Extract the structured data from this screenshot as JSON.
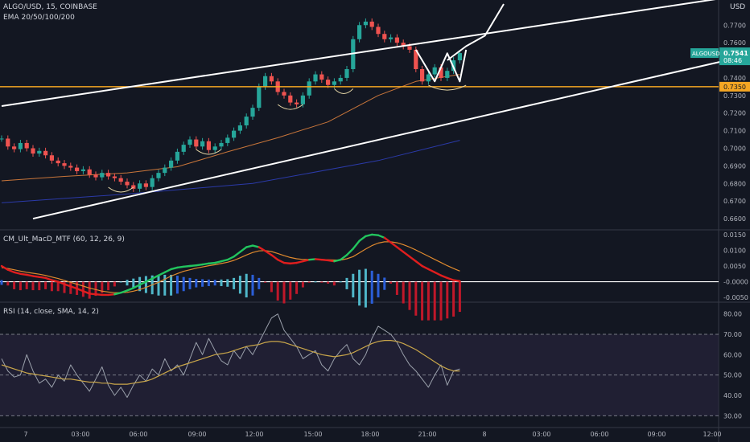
{
  "header": {
    "symbol_line": "ALGO/USD, 15, COINBASE",
    "ema_line": "EMA 20/50/100/200",
    "currency": "USD"
  },
  "colors": {
    "background": "#131722",
    "up": "#26a69a",
    "down": "#ef5350",
    "level": "#f5a623",
    "channel": "#ffffff",
    "ema_orange": "#c8753a",
    "ema_navy": "#2b3aa8",
    "macd_green": "#22c55e",
    "macd_red": "#e01e1e",
    "macd_signal": "#e08a2e",
    "rsi_line": "#9aa0ab",
    "rsi_sma": "#c9a64a",
    "rsi_band": "#2a2540"
  },
  "chart_data": [
    {
      "type": "candlestick",
      "panel": "price",
      "ylim": [
        0.655,
        0.782
      ],
      "y_ticks": [
        "0.7700",
        "0.7600",
        "0.7400",
        "0.7300",
        "0.7200",
        "0.7100",
        "0.7000",
        "0.6900",
        "0.6800",
        "0.6700",
        "0.6600"
      ],
      "x_ticks": [
        "7",
        "03:00",
        "06:00",
        "09:00",
        "12:00",
        "15:00",
        "18:00",
        "21:00",
        "8",
        "03:00",
        "06:00",
        "09:00",
        "12:00"
      ],
      "candle_start": 0.7055,
      "candle_closes": [
        0.7055,
        0.701,
        0.6995,
        0.703,
        0.7,
        0.697,
        0.6985,
        0.696,
        0.693,
        0.6915,
        0.69,
        0.689,
        0.687,
        0.688,
        0.685,
        0.6835,
        0.686,
        0.684,
        0.683,
        0.681,
        0.679,
        0.677,
        0.68,
        0.678,
        0.683,
        0.686,
        0.689,
        0.693,
        0.698,
        0.702,
        0.705,
        0.701,
        0.704,
        0.699,
        0.701,
        0.703,
        0.706,
        0.71,
        0.713,
        0.718,
        0.723,
        0.735,
        0.741,
        0.738,
        0.732,
        0.73,
        0.726,
        0.725,
        0.73,
        0.738,
        0.742,
        0.739,
        0.736,
        0.738,
        0.74,
        0.745,
        0.762,
        0.77,
        0.772,
        0.769,
        0.765,
        0.762,
        0.763,
        0.76,
        0.758,
        0.756,
        0.745,
        0.738,
        0.742,
        0.746,
        0.74,
        0.744,
        0.75,
        0.7541
      ],
      "ema_orange": [
        {
          "i": 0,
          "v": 0.6815
        },
        {
          "i": 10,
          "v": 0.684
        },
        {
          "i": 20,
          "v": 0.686
        },
        {
          "i": 28,
          "v": 0.6895
        },
        {
          "i": 36,
          "v": 0.698
        },
        {
          "i": 44,
          "v": 0.706
        },
        {
          "i": 52,
          "v": 0.715
        },
        {
          "i": 60,
          "v": 0.73
        },
        {
          "i": 66,
          "v": 0.738
        },
        {
          "i": 73,
          "v": 0.742
        }
      ],
      "ema_navy": [
        {
          "i": 0,
          "v": 0.669
        },
        {
          "i": 20,
          "v": 0.674
        },
        {
          "i": 40,
          "v": 0.68
        },
        {
          "i": 60,
          "v": 0.693
        },
        {
          "i": 73,
          "v": 0.7045
        }
      ],
      "horizontal_level": {
        "value": 0.735,
        "label": "0.7350"
      },
      "last_price": {
        "symbol": "ALGOUSD",
        "value": "0.7541",
        "countdown": "08:46"
      },
      "channel_upper": [
        {
          "i": 0,
          "v": 0.724
        },
        {
          "i": 118,
          "v": 0.787
        }
      ],
      "channel_lower": [
        {
          "i": 5,
          "v": 0.66
        },
        {
          "i": 118,
          "v": 0.752
        }
      ],
      "projection": [
        {
          "i": 71,
          "v": 0.75
        },
        {
          "i": 74,
          "v": 0.758
        },
        {
          "i": 77,
          "v": 0.764
        },
        {
          "i": 80,
          "v": 0.782
        }
      ],
      "double_bottom": [
        {
          "i": 66,
          "v": 0.756
        },
        {
          "i": 69,
          "v": 0.738
        },
        {
          "i": 71,
          "v": 0.754
        },
        {
          "i": 73,
          "v": 0.738
        },
        {
          "i": 74,
          "v": 0.756
        }
      ]
    },
    {
      "type": "line",
      "panel": "macd",
      "title": "CM_Ult_MacD_MTF (60, 12, 26, 9)",
      "ylim": [
        -0.006,
        0.016
      ],
      "y_ticks": [
        "0.0150",
        "0.0100",
        "0.0050",
        "-0.0000",
        "-0.0050"
      ],
      "macd": [
        0.005,
        0.0038,
        0.003,
        0.0025,
        0.0022,
        0.0018,
        0.0015,
        0.0012,
        0.0005,
        0.0,
        -0.0008,
        -0.0015,
        -0.0022,
        -0.003,
        -0.0038,
        -0.004,
        -0.0042,
        -0.0042,
        -0.004,
        -0.0035,
        -0.0028,
        -0.002,
        -0.001,
        0.0,
        0.001,
        0.002,
        0.003,
        0.004,
        0.0045,
        0.0048,
        0.005,
        0.0052,
        0.0055,
        0.0058,
        0.006,
        0.0065,
        0.007,
        0.008,
        0.0095,
        0.011,
        0.0115,
        0.011,
        0.0098,
        0.0085,
        0.007,
        0.006,
        0.0058,
        0.006,
        0.0065,
        0.007,
        0.0072,
        0.007,
        0.0068,
        0.0065,
        0.007,
        0.0085,
        0.0105,
        0.013,
        0.0145,
        0.015,
        0.0148,
        0.014,
        0.0125,
        0.011,
        0.0095,
        0.008,
        0.0065,
        0.005,
        0.004,
        0.003,
        0.002,
        0.0012,
        0.0005,
        0.0002
      ],
      "signal": [
        0.0045,
        0.0042,
        0.0038,
        0.0034,
        0.003,
        0.0027,
        0.0024,
        0.002,
        0.0015,
        0.001,
        0.0004,
        -0.0002,
        -0.0008,
        -0.0014,
        -0.002,
        -0.0025,
        -0.003,
        -0.0033,
        -0.0035,
        -0.0035,
        -0.0034,
        -0.003,
        -0.0025,
        -0.0018,
        -0.001,
        -0.0002,
        0.0008,
        0.0018,
        0.0026,
        0.0033,
        0.0038,
        0.0043,
        0.0047,
        0.0051,
        0.0054,
        0.0058,
        0.0062,
        0.0068,
        0.0076,
        0.0085,
        0.0093,
        0.0098,
        0.0099,
        0.0096,
        0.009,
        0.0083,
        0.0077,
        0.0073,
        0.0071,
        0.0071,
        0.0071,
        0.0071,
        0.007,
        0.0069,
        0.0069,
        0.0073,
        0.008,
        0.0092,
        0.0104,
        0.0115,
        0.0123,
        0.0127,
        0.0127,
        0.0124,
        0.0118,
        0.011,
        0.0101,
        0.0091,
        0.0081,
        0.0071,
        0.0061,
        0.0051,
        0.0042,
        0.0034
      ],
      "zero_line": 0.0
    },
    {
      "type": "line",
      "panel": "rsi",
      "title": "RSI (14, close, SMA, 14, 2)",
      "ylim": [
        25,
        85
      ],
      "y_ticks": [
        "80.00",
        "70.00",
        "60.00",
        "50.00",
        "40.00",
        "30.00"
      ],
      "band": [
        30,
        70
      ],
      "mid": 50,
      "rsi": [
        58,
        52,
        49,
        50,
        60,
        52,
        46,
        48,
        44,
        50,
        47,
        55,
        50,
        46,
        42,
        48,
        54,
        45,
        40,
        44,
        39,
        45,
        50,
        47,
        53,
        50,
        58,
        52,
        55,
        50,
        58,
        66,
        60,
        68,
        62,
        57,
        55,
        62,
        58,
        64,
        60,
        66,
        72,
        78,
        80,
        72,
        68,
        64,
        58,
        60,
        62,
        55,
        52,
        58,
        62,
        65,
        58,
        55,
        60,
        68,
        74,
        72,
        70,
        66,
        60,
        55,
        52,
        48,
        44,
        50,
        55,
        45,
        52,
        53
      ],
      "rsi_sma": [
        55,
        54,
        53,
        52,
        51,
        50.5,
        50,
        49.5,
        49,
        48.5,
        48,
        48,
        47.5,
        47,
        46.5,
        46.5,
        46,
        46,
        45.5,
        45.5,
        45.5,
        46,
        46.5,
        47,
        48,
        49.5,
        51,
        52.5,
        54,
        55,
        56,
        57,
        58,
        59,
        60,
        60.5,
        61,
        62,
        63,
        64,
        64.5,
        65,
        66,
        66.5,
        66.5,
        66,
        65,
        64,
        63,
        62,
        61,
        60,
        59.5,
        59,
        59.5,
        60,
        61,
        62.5,
        64,
        65.5,
        66.5,
        67,
        67,
        66.5,
        65.5,
        64,
        62.5,
        60.5,
        58.5,
        56.5,
        54.5,
        53,
        52,
        52
      ]
    }
  ]
}
